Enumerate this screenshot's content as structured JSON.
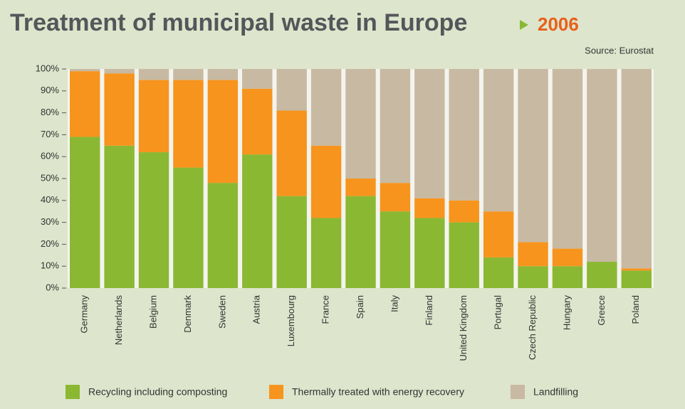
{
  "chart_data": {
    "type": "stacked_bar",
    "title": "Treatment of municipal waste in Europe",
    "subtitle": "2006",
    "source": "Source: Eurostat",
    "categories": [
      "Germany",
      "Netherlands",
      "Belgium",
      "Denmark",
      "Sweden",
      "Austria",
      "Luxembourg",
      "France",
      "Spain",
      "Italy",
      "Finland",
      "United Kingdom",
      "Portugal",
      "Czech Republic",
      "Hungary",
      "Greece",
      "Poland"
    ],
    "series": [
      {
        "name": "Recycling including composting",
        "color": "#8ab833",
        "values": [
          69,
          65,
          62,
          55,
          48,
          61,
          42,
          32,
          42,
          35,
          32,
          30,
          14,
          10,
          10,
          12,
          8
        ]
      },
      {
        "name": "Thermally treated with energy recovery",
        "color": "#f7941d",
        "values": [
          30,
          33,
          33,
          40,
          47,
          30,
          39,
          33,
          8,
          13,
          9,
          10,
          21,
          11,
          8,
          0,
          1
        ]
      },
      {
        "name": "Landfilling",
        "color": "#c8b9a2",
        "values": [
          1,
          2,
          5,
          5,
          5,
          9,
          19,
          35,
          50,
          52,
          59,
          60,
          65,
          79,
          82,
          88,
          91
        ]
      }
    ],
    "ylim": [
      0,
      100
    ],
    "yticks": [
      {
        "value": 0,
        "label": "0%"
      },
      {
        "value": 10,
        "label": "10%"
      },
      {
        "value": 20,
        "label": "20%"
      },
      {
        "value": 30,
        "label": "30%"
      },
      {
        "value": 40,
        "label": "40%"
      },
      {
        "value": 50,
        "label": "50%"
      },
      {
        "value": 60,
        "label": "60%"
      },
      {
        "value": 70,
        "label": "70%"
      },
      {
        "value": 80,
        "label": "80%"
      },
      {
        "value": 90,
        "label": "90%"
      },
      {
        "value": 100,
        "label": "100%"
      }
    ]
  }
}
